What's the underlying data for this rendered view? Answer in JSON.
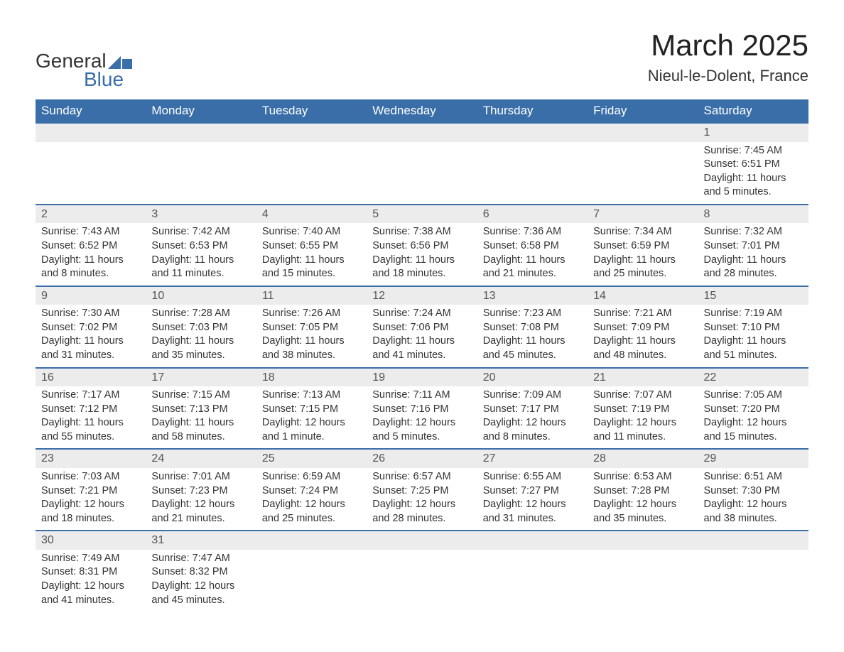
{
  "logo": {
    "text1": "General",
    "text2": "Blue"
  },
  "title": "March 2025",
  "location": "Nieul-le-Dolent, France",
  "headers": [
    "Sunday",
    "Monday",
    "Tuesday",
    "Wednesday",
    "Thursday",
    "Friday",
    "Saturday"
  ],
  "colors": {
    "header_bg": "#3a6ea8",
    "header_fg": "#ffffff",
    "dayrow_bg": "#ececec",
    "dayrow_border": "#3a6ea8",
    "text": "#333333",
    "logo_blue": "#3a6ea8"
  },
  "weeks": [
    {
      "nums": [
        "",
        "",
        "",
        "",
        "",
        "",
        "1"
      ],
      "cells": [
        null,
        null,
        null,
        null,
        null,
        null,
        {
          "sunrise": "7:45 AM",
          "sunset": "6:51 PM",
          "daylight": "11 hours and 5 minutes."
        }
      ]
    },
    {
      "nums": [
        "2",
        "3",
        "4",
        "5",
        "6",
        "7",
        "8"
      ],
      "cells": [
        {
          "sunrise": "7:43 AM",
          "sunset": "6:52 PM",
          "daylight": "11 hours and 8 minutes."
        },
        {
          "sunrise": "7:42 AM",
          "sunset": "6:53 PM",
          "daylight": "11 hours and 11 minutes."
        },
        {
          "sunrise": "7:40 AM",
          "sunset": "6:55 PM",
          "daylight": "11 hours and 15 minutes."
        },
        {
          "sunrise": "7:38 AM",
          "sunset": "6:56 PM",
          "daylight": "11 hours and 18 minutes."
        },
        {
          "sunrise": "7:36 AM",
          "sunset": "6:58 PM",
          "daylight": "11 hours and 21 minutes."
        },
        {
          "sunrise": "7:34 AM",
          "sunset": "6:59 PM",
          "daylight": "11 hours and 25 minutes."
        },
        {
          "sunrise": "7:32 AM",
          "sunset": "7:01 PM",
          "daylight": "11 hours and 28 minutes."
        }
      ]
    },
    {
      "nums": [
        "9",
        "10",
        "11",
        "12",
        "13",
        "14",
        "15"
      ],
      "cells": [
        {
          "sunrise": "7:30 AM",
          "sunset": "7:02 PM",
          "daylight": "11 hours and 31 minutes."
        },
        {
          "sunrise": "7:28 AM",
          "sunset": "7:03 PM",
          "daylight": "11 hours and 35 minutes."
        },
        {
          "sunrise": "7:26 AM",
          "sunset": "7:05 PM",
          "daylight": "11 hours and 38 minutes."
        },
        {
          "sunrise": "7:24 AM",
          "sunset": "7:06 PM",
          "daylight": "11 hours and 41 minutes."
        },
        {
          "sunrise": "7:23 AM",
          "sunset": "7:08 PM",
          "daylight": "11 hours and 45 minutes."
        },
        {
          "sunrise": "7:21 AM",
          "sunset": "7:09 PM",
          "daylight": "11 hours and 48 minutes."
        },
        {
          "sunrise": "7:19 AM",
          "sunset": "7:10 PM",
          "daylight": "11 hours and 51 minutes."
        }
      ]
    },
    {
      "nums": [
        "16",
        "17",
        "18",
        "19",
        "20",
        "21",
        "22"
      ],
      "cells": [
        {
          "sunrise": "7:17 AM",
          "sunset": "7:12 PM",
          "daylight": "11 hours and 55 minutes."
        },
        {
          "sunrise": "7:15 AM",
          "sunset": "7:13 PM",
          "daylight": "11 hours and 58 minutes."
        },
        {
          "sunrise": "7:13 AM",
          "sunset": "7:15 PM",
          "daylight": "12 hours and 1 minute."
        },
        {
          "sunrise": "7:11 AM",
          "sunset": "7:16 PM",
          "daylight": "12 hours and 5 minutes."
        },
        {
          "sunrise": "7:09 AM",
          "sunset": "7:17 PM",
          "daylight": "12 hours and 8 minutes."
        },
        {
          "sunrise": "7:07 AM",
          "sunset": "7:19 PM",
          "daylight": "12 hours and 11 minutes."
        },
        {
          "sunrise": "7:05 AM",
          "sunset": "7:20 PM",
          "daylight": "12 hours and 15 minutes."
        }
      ]
    },
    {
      "nums": [
        "23",
        "24",
        "25",
        "26",
        "27",
        "28",
        "29"
      ],
      "cells": [
        {
          "sunrise": "7:03 AM",
          "sunset": "7:21 PM",
          "daylight": "12 hours and 18 minutes."
        },
        {
          "sunrise": "7:01 AM",
          "sunset": "7:23 PM",
          "daylight": "12 hours and 21 minutes."
        },
        {
          "sunrise": "6:59 AM",
          "sunset": "7:24 PM",
          "daylight": "12 hours and 25 minutes."
        },
        {
          "sunrise": "6:57 AM",
          "sunset": "7:25 PM",
          "daylight": "12 hours and 28 minutes."
        },
        {
          "sunrise": "6:55 AM",
          "sunset": "7:27 PM",
          "daylight": "12 hours and 31 minutes."
        },
        {
          "sunrise": "6:53 AM",
          "sunset": "7:28 PM",
          "daylight": "12 hours and 35 minutes."
        },
        {
          "sunrise": "6:51 AM",
          "sunset": "7:30 PM",
          "daylight": "12 hours and 38 minutes."
        }
      ]
    },
    {
      "nums": [
        "30",
        "31",
        "",
        "",
        "",
        "",
        ""
      ],
      "cells": [
        {
          "sunrise": "7:49 AM",
          "sunset": "8:31 PM",
          "daylight": "12 hours and 41 minutes."
        },
        {
          "sunrise": "7:47 AM",
          "sunset": "8:32 PM",
          "daylight": "12 hours and 45 minutes."
        },
        null,
        null,
        null,
        null,
        null
      ]
    }
  ],
  "labels": {
    "sunrise": "Sunrise:",
    "sunset": "Sunset:",
    "daylight": "Daylight:"
  }
}
